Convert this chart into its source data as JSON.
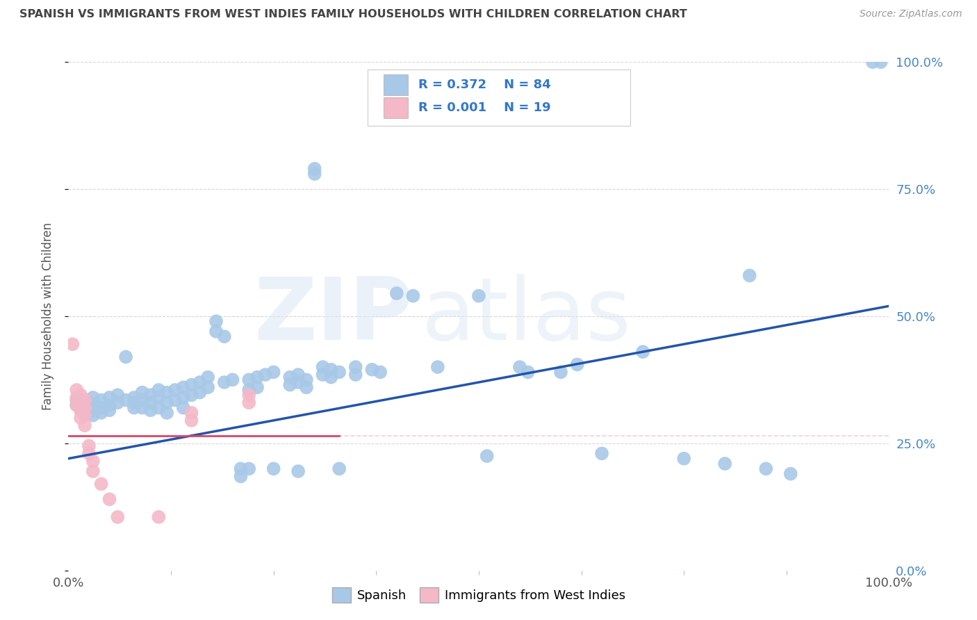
{
  "title": "SPANISH VS IMMIGRANTS FROM WEST INDIES FAMILY HOUSEHOLDS WITH CHILDREN CORRELATION CHART",
  "source": "Source: ZipAtlas.com",
  "ylabel": "Family Households with Children",
  "xlim": [
    0,
    1.0
  ],
  "ylim": [
    0,
    1.0
  ],
  "xtick_labels": [
    "0.0%",
    "100.0%"
  ],
  "ytick_labels": [
    "0.0%",
    "25.0%",
    "50.0%",
    "75.0%",
    "100.0%"
  ],
  "ytick_positions": [
    0.0,
    0.25,
    0.5,
    0.75,
    1.0
  ],
  "background_color": "#ffffff",
  "watermark_zip": "ZIP",
  "watermark_atlas": "atlas",
  "blue_color": "#a8c8e8",
  "pink_color": "#f4b8c8",
  "blue_line_color": "#2255aa",
  "pink_line_color": "#dd4466",
  "pink_dash_color": "#f4b8c8",
  "grid_color": "#cccccc",
  "title_color": "#444444",
  "axis_color": "#555555",
  "right_label_color": "#4488cc",
  "blue_dots": [
    [
      0.01,
      0.335
    ],
    [
      0.01,
      0.325
    ],
    [
      0.015,
      0.33
    ],
    [
      0.015,
      0.315
    ],
    [
      0.02,
      0.335
    ],
    [
      0.02,
      0.32
    ],
    [
      0.02,
      0.31
    ],
    [
      0.025,
      0.33
    ],
    [
      0.03,
      0.34
    ],
    [
      0.03,
      0.325
    ],
    [
      0.03,
      0.315
    ],
    [
      0.03,
      0.305
    ],
    [
      0.04,
      0.335
    ],
    [
      0.04,
      0.32
    ],
    [
      0.04,
      0.31
    ],
    [
      0.05,
      0.34
    ],
    [
      0.05,
      0.325
    ],
    [
      0.05,
      0.315
    ],
    [
      0.06,
      0.345
    ],
    [
      0.06,
      0.33
    ],
    [
      0.07,
      0.335
    ],
    [
      0.07,
      0.42
    ],
    [
      0.08,
      0.34
    ],
    [
      0.08,
      0.33
    ],
    [
      0.08,
      0.32
    ],
    [
      0.09,
      0.35
    ],
    [
      0.09,
      0.335
    ],
    [
      0.09,
      0.32
    ],
    [
      0.1,
      0.345
    ],
    [
      0.1,
      0.33
    ],
    [
      0.1,
      0.315
    ],
    [
      0.11,
      0.355
    ],
    [
      0.11,
      0.34
    ],
    [
      0.11,
      0.32
    ],
    [
      0.12,
      0.35
    ],
    [
      0.12,
      0.33
    ],
    [
      0.12,
      0.31
    ],
    [
      0.13,
      0.355
    ],
    [
      0.13,
      0.335
    ],
    [
      0.14,
      0.36
    ],
    [
      0.14,
      0.34
    ],
    [
      0.14,
      0.32
    ],
    [
      0.15,
      0.365
    ],
    [
      0.15,
      0.345
    ],
    [
      0.16,
      0.37
    ],
    [
      0.16,
      0.35
    ],
    [
      0.17,
      0.38
    ],
    [
      0.17,
      0.36
    ],
    [
      0.18,
      0.49
    ],
    [
      0.18,
      0.47
    ],
    [
      0.19,
      0.46
    ],
    [
      0.19,
      0.37
    ],
    [
      0.2,
      0.375
    ],
    [
      0.21,
      0.2
    ],
    [
      0.21,
      0.185
    ],
    [
      0.22,
      0.375
    ],
    [
      0.22,
      0.355
    ],
    [
      0.22,
      0.2
    ],
    [
      0.23,
      0.38
    ],
    [
      0.23,
      0.36
    ],
    [
      0.24,
      0.385
    ],
    [
      0.25,
      0.39
    ],
    [
      0.25,
      0.2
    ],
    [
      0.27,
      0.38
    ],
    [
      0.27,
      0.365
    ],
    [
      0.28,
      0.385
    ],
    [
      0.28,
      0.37
    ],
    [
      0.28,
      0.195
    ],
    [
      0.29,
      0.375
    ],
    [
      0.29,
      0.36
    ],
    [
      0.3,
      0.79
    ],
    [
      0.3,
      0.78
    ],
    [
      0.31,
      0.4
    ],
    [
      0.31,
      0.385
    ],
    [
      0.32,
      0.395
    ],
    [
      0.32,
      0.38
    ],
    [
      0.33,
      0.39
    ],
    [
      0.33,
      0.2
    ],
    [
      0.35,
      0.4
    ],
    [
      0.35,
      0.385
    ],
    [
      0.37,
      0.395
    ],
    [
      0.38,
      0.39
    ],
    [
      0.4,
      0.545
    ],
    [
      0.42,
      0.54
    ],
    [
      0.45,
      0.4
    ],
    [
      0.5,
      0.54
    ],
    [
      0.51,
      0.225
    ],
    [
      0.55,
      0.4
    ],
    [
      0.56,
      0.39
    ],
    [
      0.6,
      0.39
    ],
    [
      0.62,
      0.405
    ],
    [
      0.65,
      0.23
    ],
    [
      0.7,
      0.43
    ],
    [
      0.75,
      0.22
    ],
    [
      0.8,
      0.21
    ],
    [
      0.83,
      0.58
    ],
    [
      0.85,
      0.2
    ],
    [
      0.88,
      0.19
    ],
    [
      0.98,
      1.0
    ],
    [
      0.99,
      1.0
    ]
  ],
  "pink_dots": [
    [
      0.005,
      0.445
    ],
    [
      0.01,
      0.355
    ],
    [
      0.01,
      0.34
    ],
    [
      0.01,
      0.325
    ],
    [
      0.015,
      0.345
    ],
    [
      0.015,
      0.33
    ],
    [
      0.015,
      0.315
    ],
    [
      0.015,
      0.3
    ],
    [
      0.02,
      0.335
    ],
    [
      0.02,
      0.32
    ],
    [
      0.02,
      0.305
    ],
    [
      0.02,
      0.285
    ],
    [
      0.025,
      0.245
    ],
    [
      0.025,
      0.23
    ],
    [
      0.03,
      0.215
    ],
    [
      0.03,
      0.195
    ],
    [
      0.04,
      0.17
    ],
    [
      0.05,
      0.14
    ],
    [
      0.06,
      0.105
    ],
    [
      0.11,
      0.105
    ],
    [
      0.15,
      0.31
    ],
    [
      0.15,
      0.295
    ],
    [
      0.22,
      0.345
    ],
    [
      0.22,
      0.33
    ]
  ],
  "blue_trend": [
    0.0,
    0.22,
    1.0,
    0.52
  ],
  "pink_trend": [
    0.0,
    0.265,
    0.33,
    0.265
  ]
}
